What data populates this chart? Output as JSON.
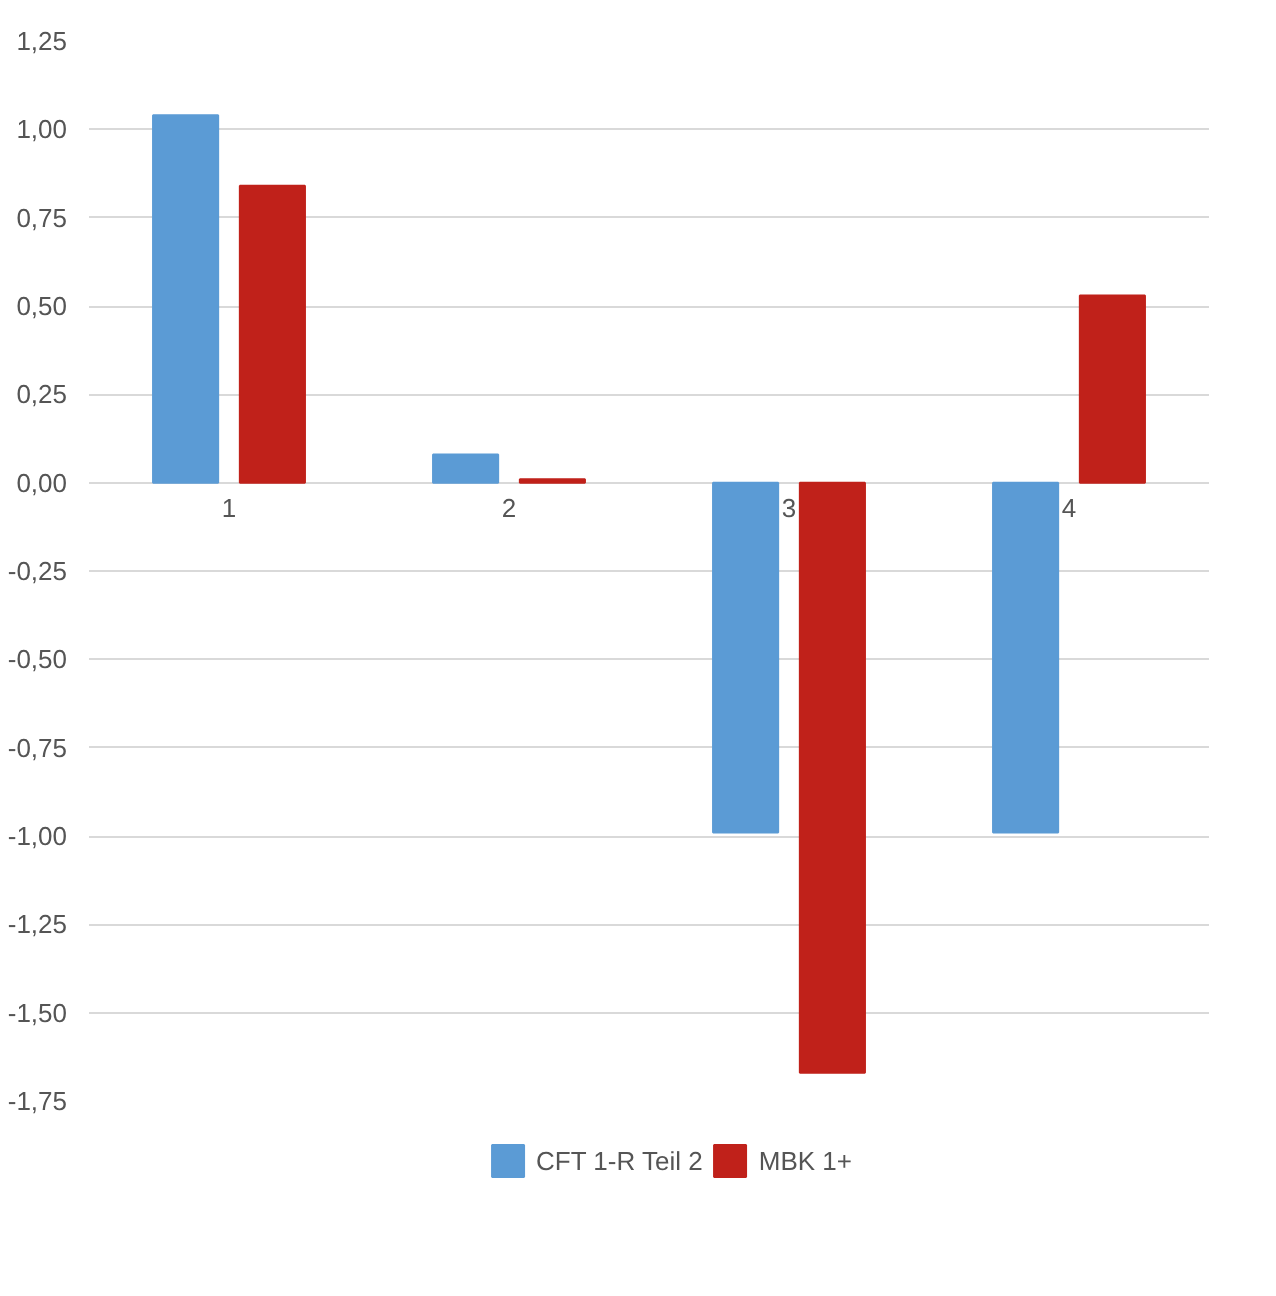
{
  "chart_data": {
    "type": "bar",
    "categories": [
      "1",
      "2",
      "3",
      "4"
    ],
    "series": [
      {
        "name": "CFT 1-R Teil 2",
        "color": "#5b9bd5",
        "values": [
          1.04,
          0.08,
          -0.99,
          -0.99
        ]
      },
      {
        "name": "MBK 1+",
        "color": "#c0211a",
        "values": [
          0.84,
          0.01,
          -1.67,
          0.53
        ]
      }
    ],
    "ylim": [
      -1.75,
      1.25
    ],
    "yticks": [
      {
        "value": -1.75,
        "label": "-1,75"
      },
      {
        "value": -1.5,
        "label": "-1,50"
      },
      {
        "value": -1.25,
        "label": "-1,25"
      },
      {
        "value": -1.0,
        "label": "-1,00"
      },
      {
        "value": -0.75,
        "label": "-0,75"
      },
      {
        "value": -0.5,
        "label": "-0,50"
      },
      {
        "value": -0.25,
        "label": "-0,25"
      },
      {
        "value": 0,
        "label": "0,00"
      },
      {
        "value": 0.25,
        "label": "0,25"
      },
      {
        "value": 0.5,
        "label": "0,50"
      },
      {
        "value": 0.75,
        "label": "0,75"
      },
      {
        "value": 1.0,
        "label": "1,00"
      },
      {
        "value": 1.25,
        "label": "1,25"
      }
    ],
    "grid": "y",
    "legend": "bottom"
  }
}
